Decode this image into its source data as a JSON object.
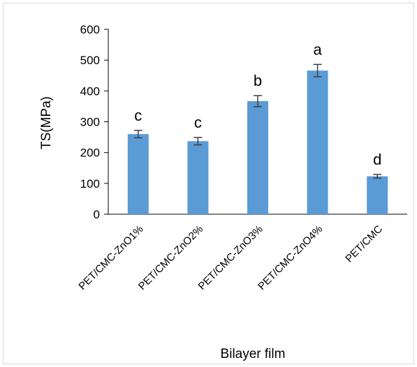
{
  "chart_data": {
    "type": "bar",
    "title": "",
    "xlabel": "Bilayer film",
    "ylabel": "TS(MPa)",
    "ylim": [
      0,
      600
    ],
    "yticks": [
      0,
      100,
      200,
      300,
      400,
      500,
      600
    ],
    "categories": [
      "PET/CMC-ZnO1%",
      "PET/CMC-ZnO2%",
      "PET/CMC-ZnO3%",
      "PET/CMC-ZnO4%",
      "PET/CMC"
    ],
    "values": [
      260,
      237,
      367,
      466,
      123
    ],
    "errors": [
      12,
      12,
      18,
      20,
      6
    ],
    "letters": [
      "c",
      "c",
      "b",
      "a",
      "d"
    ],
    "bar_color": "#5b9bd5",
    "error_color": "#404040",
    "grid": false,
    "legend": "none"
  }
}
